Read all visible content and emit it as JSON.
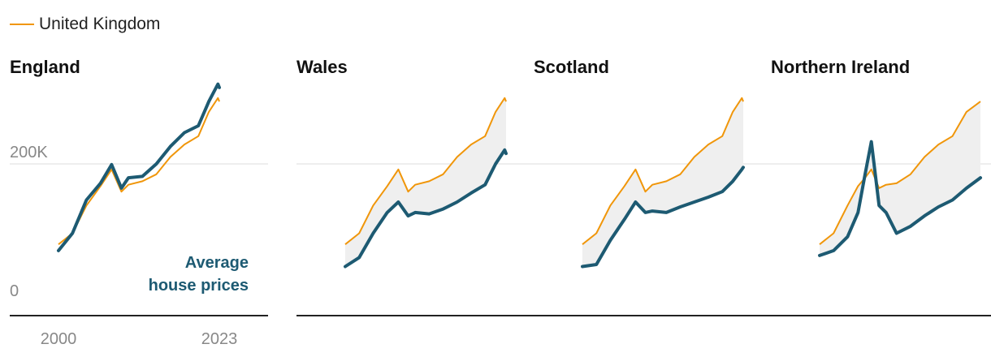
{
  "legend": {
    "label": "United Kingdom",
    "color": "#f0960a"
  },
  "annotation": {
    "line1": "Average",
    "line2": "house prices",
    "color": "#1d5a72"
  },
  "colors": {
    "uk": "#f0960a",
    "region": "#1d5a72",
    "gap_fill": "#efefef",
    "gridline": "#dddddd",
    "baseline": "#222222"
  },
  "chart_data": [
    {
      "type": "line",
      "title": "England",
      "x": [
        2000,
        2002,
        2004,
        2006,
        2007.6,
        2009,
        2010,
        2012,
        2014,
        2016,
        2018,
        2020,
        2021.5,
        2022.8,
        2023
      ],
      "ylim": [
        0,
        310000
      ],
      "y_ticks": [
        0,
        200000
      ],
      "y_tick_labels": [
        "0",
        "200K"
      ],
      "x_tick_labels": [
        "2000",
        "2023"
      ],
      "series": [
        {
          "name": "England",
          "values": [
            75000,
            100000,
            148000,
            172000,
            199000,
            165000,
            180000,
            182000,
            200000,
            225000,
            245000,
            255000,
            290000,
            315000,
            310000
          ]
        },
        {
          "name": "United Kingdom",
          "values": [
            84000,
            100000,
            140000,
            168000,
            192000,
            160000,
            170000,
            175000,
            185000,
            210000,
            228000,
            240000,
            275000,
            295000,
            290000
          ]
        }
      ]
    },
    {
      "type": "line",
      "title": "Wales",
      "x": [
        2000,
        2002,
        2004,
        2006,
        2007.6,
        2009,
        2010,
        2012,
        2014,
        2016,
        2018,
        2020,
        2021.5,
        2022.8,
        2023
      ],
      "ylim": [
        0,
        310000
      ],
      "series": [
        {
          "name": "Wales",
          "values": [
            52000,
            65000,
            100000,
            130000,
            145000,
            125000,
            130000,
            128000,
            135000,
            145000,
            158000,
            170000,
            200000,
            220000,
            215000
          ]
        },
        {
          "name": "United Kingdom",
          "values": [
            84000,
            100000,
            140000,
            168000,
            192000,
            160000,
            170000,
            175000,
            185000,
            210000,
            228000,
            240000,
            275000,
            295000,
            290000
          ]
        }
      ]
    },
    {
      "type": "line",
      "title": "Scotland",
      "x": [
        2000,
        2002,
        2004,
        2006,
        2007.6,
        2009,
        2010,
        2012,
        2014,
        2016,
        2018,
        2020,
        2021.5,
        2022.8,
        2023
      ],
      "ylim": [
        0,
        310000
      ],
      "series": [
        {
          "name": "Scotland",
          "values": [
            52000,
            55000,
            90000,
            120000,
            145000,
            130000,
            132000,
            130000,
            138000,
            145000,
            152000,
            160000,
            175000,
            192000,
            195000
          ]
        },
        {
          "name": "United Kingdom",
          "values": [
            84000,
            100000,
            140000,
            168000,
            192000,
            160000,
            170000,
            175000,
            185000,
            210000,
            228000,
            240000,
            275000,
            295000,
            290000
          ]
        }
      ]
    },
    {
      "type": "line",
      "title": "Northern Ireland",
      "x": [
        2000,
        2002,
        2004,
        2005.5,
        2006.5,
        2007.4,
        2008.5,
        2009.5,
        2011,
        2013,
        2015,
        2017,
        2019,
        2021,
        2023
      ],
      "ylim": [
        0,
        310000
      ],
      "series": [
        {
          "name": "Northern Ireland",
          "values": [
            68000,
            75000,
            95000,
            130000,
            185000,
            232000,
            140000,
            130000,
            100000,
            110000,
            125000,
            138000,
            148000,
            165000,
            180000
          ]
        },
        {
          "name": "United Kingdom",
          "values": [
            84000,
            100000,
            140000,
            168000,
            180000,
            192000,
            165000,
            170000,
            172000,
            185000,
            210000,
            228000,
            240000,
            275000,
            290000
          ]
        }
      ]
    }
  ]
}
